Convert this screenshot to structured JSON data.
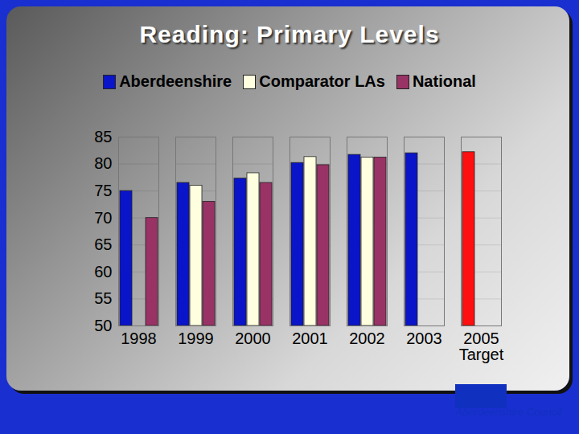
{
  "chart_data": {
    "type": "bar",
    "title": "Reading: Primary Levels",
    "categories": [
      "1998",
      "1999",
      "2000",
      "2001",
      "2002",
      "2003",
      "2005\nTarget"
    ],
    "series": [
      {
        "name": "Aberdeenshire",
        "color": "#0a14c8",
        "colors": [
          "#0a14c8",
          "#0a14c8",
          "#0a14c8",
          "#0a14c8",
          "#0a14c8",
          "#0a14c8",
          "#ff1010"
        ],
        "values": [
          75,
          76.5,
          77.3,
          80.2,
          81.7,
          82,
          82.2
        ]
      },
      {
        "name": "Comparator LAs",
        "color": "#ffffe0",
        "values": [
          null,
          76,
          78.3,
          81.3,
          81.2,
          null,
          null
        ]
      },
      {
        "name": "National",
        "color": "#993366",
        "values": [
          70,
          73,
          76.5,
          79.8,
          81.2,
          null,
          null
        ]
      }
    ],
    "ylim": [
      50,
      85
    ],
    "yticks": [
      50,
      55,
      60,
      65,
      70,
      75,
      80,
      85
    ],
    "grid": true,
    "legend": "top",
    "annotation": "Aberdeenshire Council"
  }
}
